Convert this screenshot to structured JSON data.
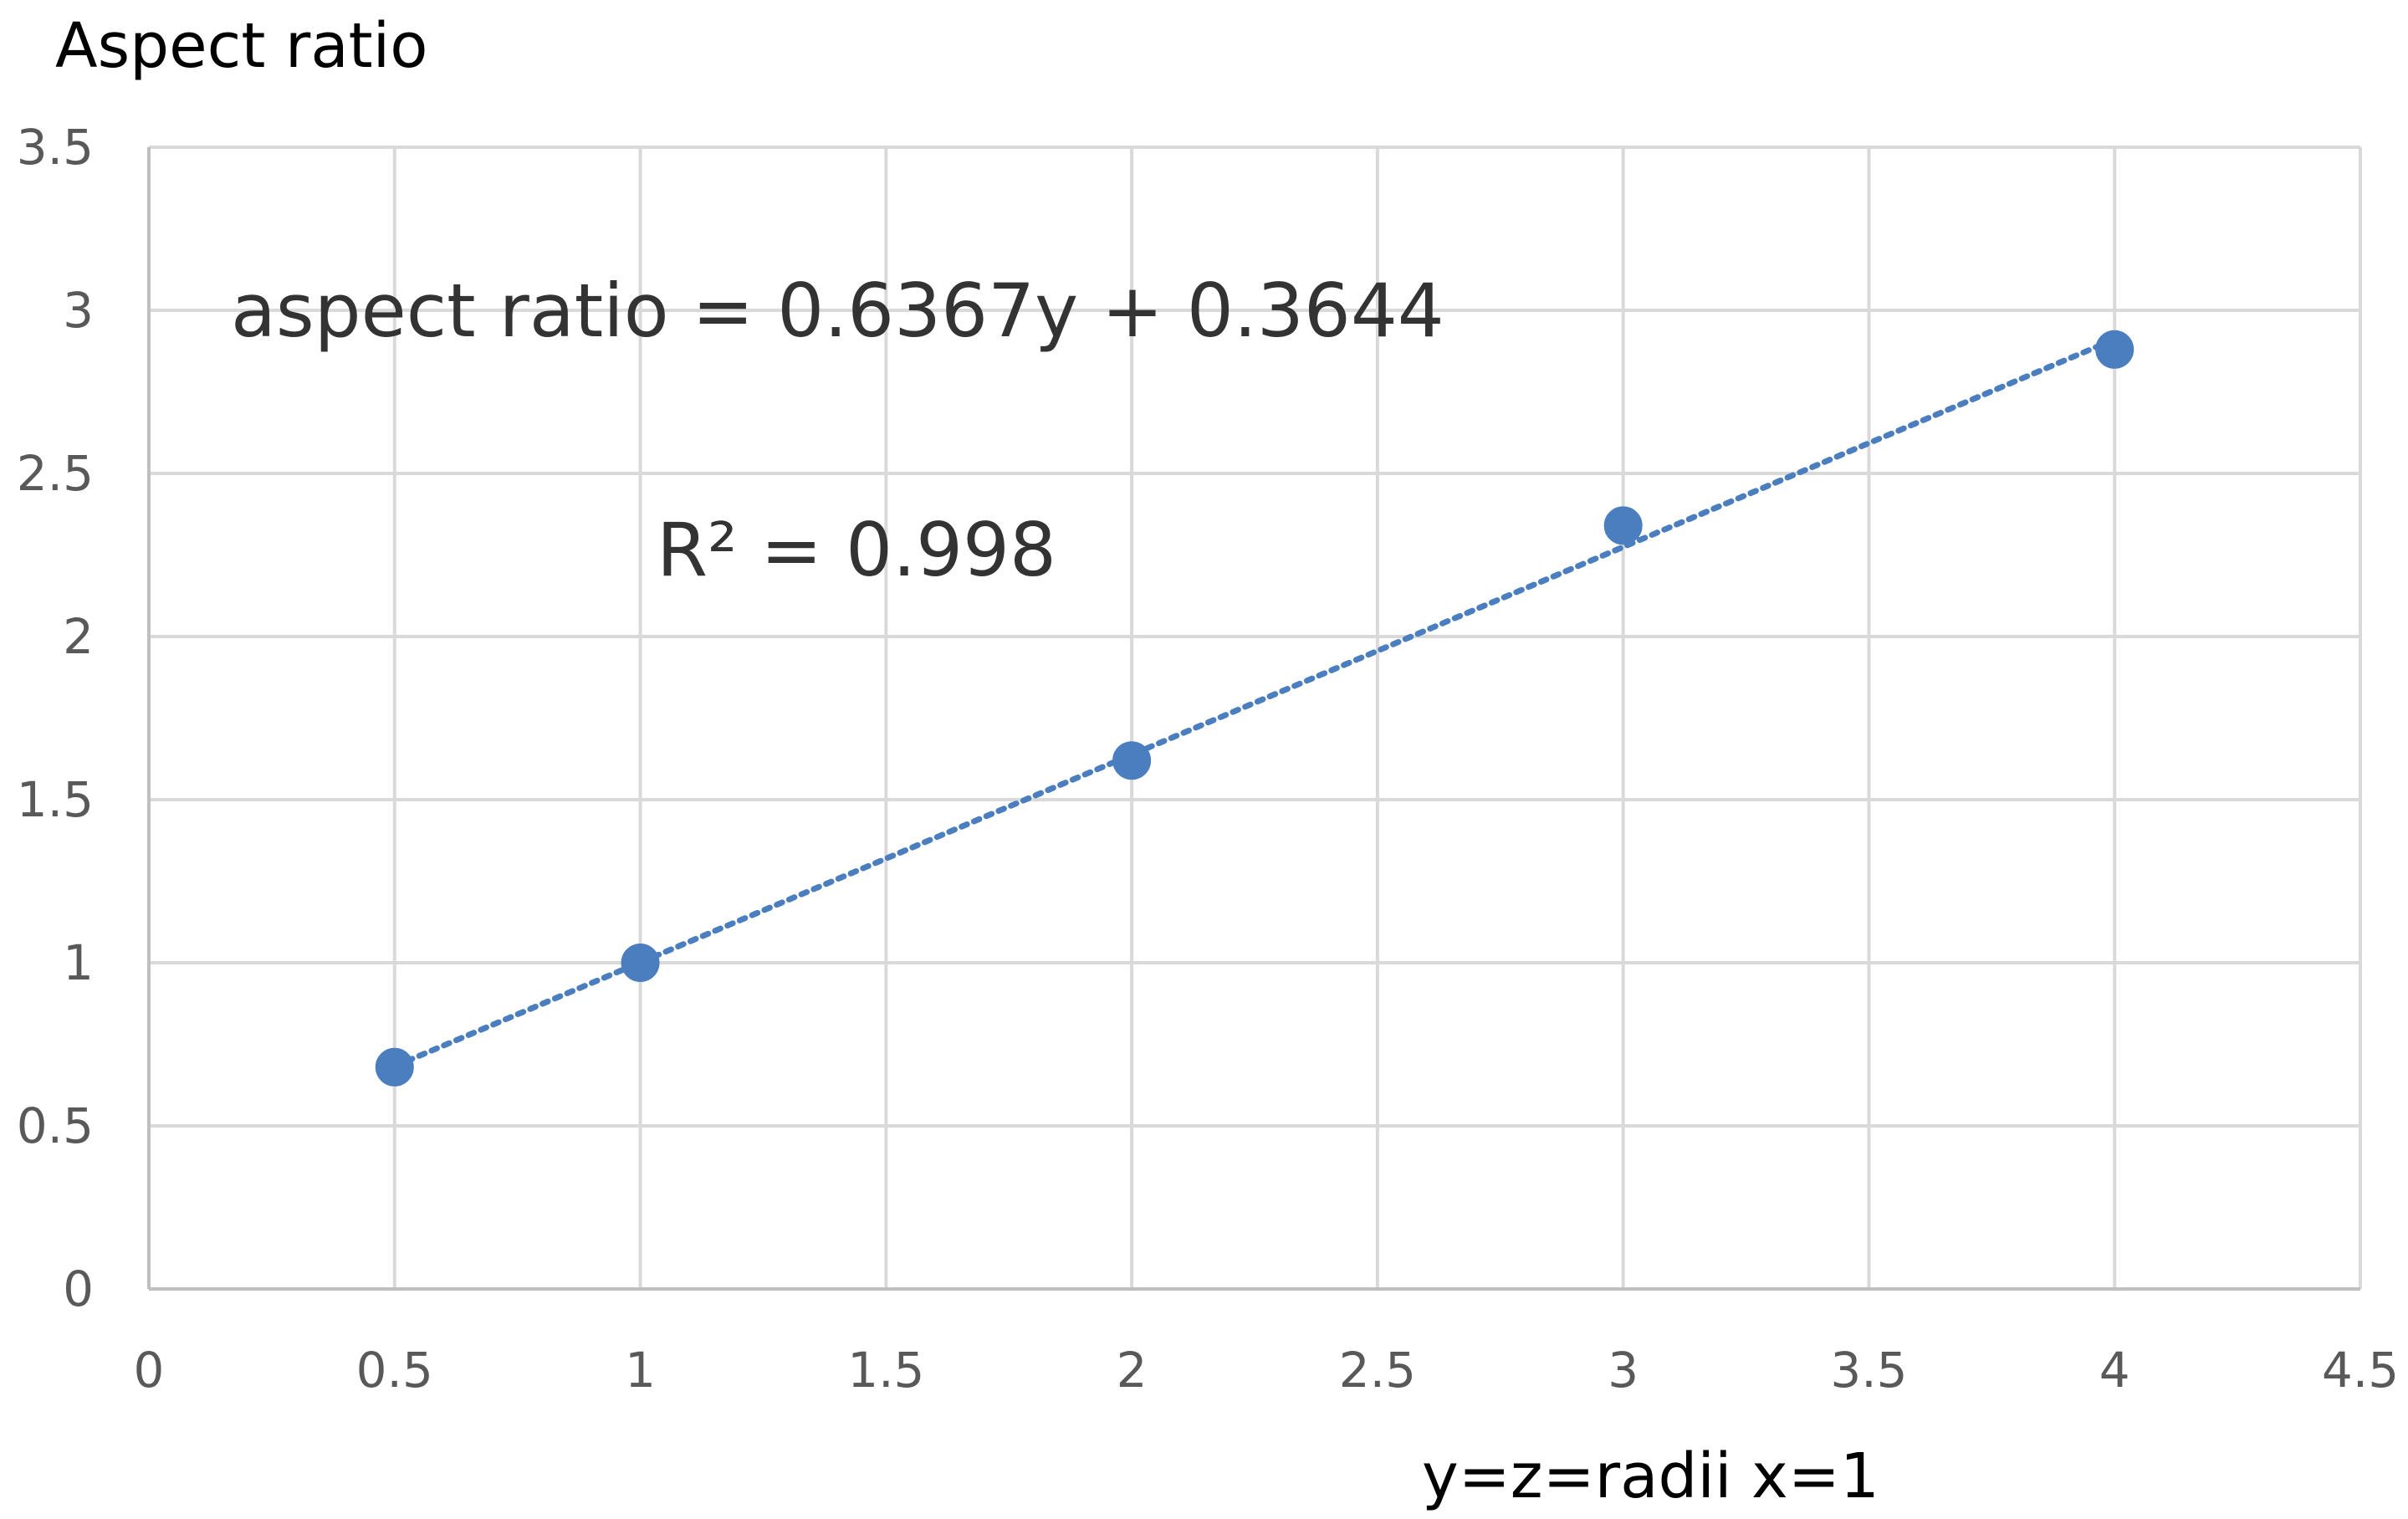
{
  "chart_data": {
    "type": "scatter",
    "ylabel": "Aspect ratio",
    "xlabel": "y=z=radii  x=1",
    "xlim": [
      0,
      4.5
    ],
    "ylim": [
      0,
      3.5
    ],
    "x_ticks": [
      "0",
      "0.5",
      "1",
      "1.5",
      "2",
      "2.5",
      "3",
      "3.5",
      "4",
      "4.5"
    ],
    "y_ticks": [
      "0",
      "0.5",
      "1",
      "1.5",
      "2",
      "2.5",
      "3",
      "3.5"
    ],
    "grid": true,
    "legend": "none",
    "series": [
      {
        "x": [
          0.5,
          1,
          2,
          3,
          4
        ],
        "y": [
          0.68,
          1.0,
          1.62,
          2.34,
          2.88
        ],
        "color": "#4a7ebf"
      }
    ],
    "trendline": {
      "style": "dotted",
      "color": "#4a7ebf",
      "slope": 0.6367,
      "intercept": 0.3644,
      "x_range": [
        0.5,
        4
      ]
    },
    "annotations": {
      "equation": "aspect ratio = 0.6367y + 0.3644",
      "r_squared": "R² = 0.998"
    }
  }
}
